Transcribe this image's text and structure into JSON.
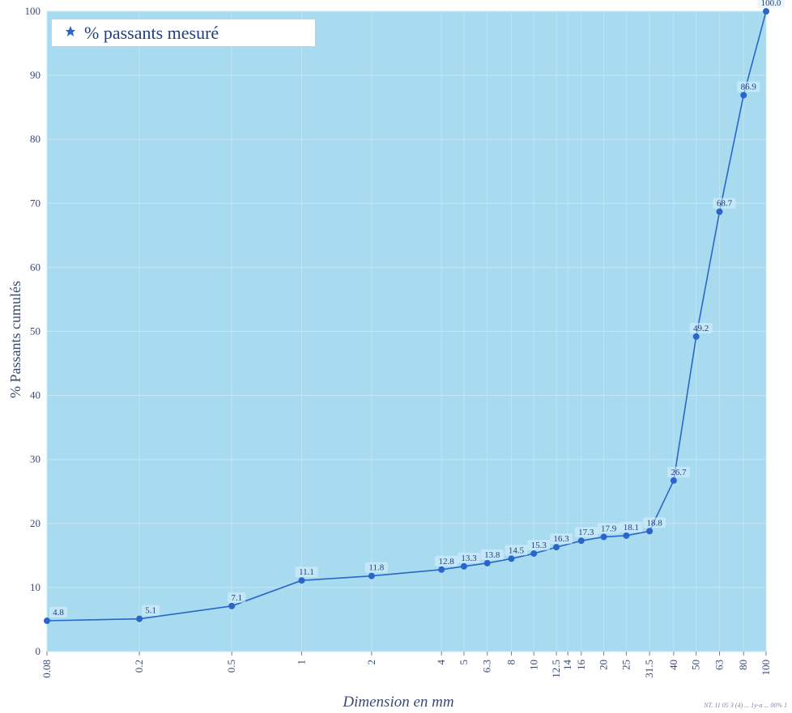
{
  "colors": {
    "plot_bg": "#a9dbf0",
    "grid": "#c6e8f6",
    "series": "#2a66c8",
    "label_box": "#d9f0fb"
  },
  "legend": {
    "label": "% passants mesuré",
    "position": "top-left"
  },
  "footnote": "NT. 11 05 3 (4) ... 1y-a ... 00% 1",
  "chart_data": {
    "type": "line",
    "title": "",
    "xlabel": "Dimension en mm",
    "ylabel": "% Passants cumulés",
    "x_scale": "log",
    "ylim": [
      0,
      100
    ],
    "yticks": [
      0,
      10,
      20,
      30,
      40,
      50,
      60,
      70,
      80,
      90,
      100
    ],
    "xticks": [
      "0.08",
      "0.2",
      "0.5",
      "1",
      "2",
      "4",
      "5",
      "6.3",
      "8",
      "10",
      "12.5",
      "14",
      "16",
      "20",
      "25",
      "31.5",
      "40",
      "50",
      "63",
      "80",
      "100"
    ],
    "grid": true,
    "series": [
      {
        "name": "% passants mesuré",
        "x": [
          0.08,
          0.2,
          0.5,
          1,
          2,
          4,
          5,
          6.3,
          8,
          10,
          12.5,
          16,
          20,
          25,
          31.5,
          40,
          50,
          63,
          80,
          100
        ],
        "y": [
          4.8,
          5.1,
          7.1,
          11.1,
          11.8,
          12.8,
          13.3,
          13.8,
          14.5,
          15.3,
          16.3,
          17.3,
          17.9,
          18.1,
          18.8,
          26.7,
          49.2,
          68.7,
          86.9,
          100.0
        ],
        "labels": [
          "4.8",
          "5.1",
          "7.1",
          "11.1",
          "11.8",
          "12.8",
          "13.3",
          "13.8",
          "14.5",
          "15.3",
          "16.3",
          "17.3",
          "17.9",
          "18.1",
          "18.8",
          "26.7",
          "49.2",
          "68.7",
          "86.9",
          "100.0"
        ]
      }
    ]
  }
}
